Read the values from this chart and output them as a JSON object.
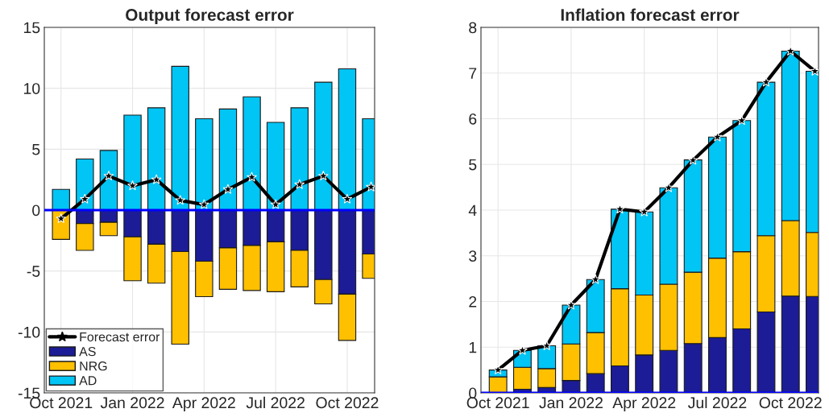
{
  "chart_data": [
    {
      "type": "bar",
      "title": "Output forecast error",
      "stacked": true,
      "categories": [
        "Oct 2021",
        null,
        null,
        "Jan 2022",
        null,
        null,
        "Apr 2022",
        null,
        null,
        "Jul 2022",
        null,
        null,
        "Oct 2022",
        null
      ],
      "series": [
        {
          "name": "Forecast error",
          "type": "line",
          "color": "#000000",
          "values": [
            -0.7,
            0.9,
            2.8,
            2.0,
            2.5,
            0.8,
            0.45,
            1.7,
            2.7,
            0.45,
            2.1,
            2.8,
            0.9,
            1.9
          ]
        },
        {
          "name": "AS",
          "color": "#1c1c96",
          "values": [
            0,
            -1.1,
            -1.0,
            -2.2,
            -2.8,
            -3.4,
            -4.2,
            -3.1,
            -2.9,
            -2.6,
            -3.3,
            -5.7,
            -6.9,
            -3.6
          ]
        },
        {
          "name": "NRG",
          "color": "#ffc000",
          "values": [
            -2.4,
            -2.2,
            -1.1,
            -3.6,
            -3.2,
            -7.6,
            -2.9,
            -3.4,
            -3.7,
            -4.1,
            -3.0,
            -2.0,
            -3.8,
            -2.0
          ]
        },
        {
          "name": "AD",
          "color": "#00c5f5",
          "values": [
            1.7,
            4.2,
            4.9,
            7.8,
            8.4,
            11.8,
            7.5,
            8.3,
            9.3,
            7.2,
            8.4,
            10.5,
            11.6,
            7.5
          ]
        }
      ],
      "ylim": [
        -15,
        15
      ],
      "yticks": [
        -15,
        -10,
        -5,
        0,
        5,
        10,
        15
      ],
      "grid": true,
      "legend": "bottom left",
      "marker": "star",
      "ref_lines": [
        {
          "axis": "y",
          "value": 0,
          "color": "#0000ff"
        }
      ]
    },
    {
      "type": "bar",
      "title": "Inflation forecast error",
      "stacked": true,
      "categories": [
        "Oct 2021",
        null,
        null,
        "Jan 2022",
        null,
        null,
        "Apr 2022",
        null,
        null,
        "Jul 2022",
        null,
        null,
        "Oct 2022",
        null
      ],
      "series": [
        {
          "type": "line",
          "color": "#000000",
          "values": [
            0.5,
            0.93,
            1.03,
            1.92,
            2.48,
            4.02,
            3.96,
            4.49,
            5.09,
            5.6,
            5.96,
            6.8,
            7.48,
            7.04
          ]
        },
        {
          "color": "#1c1c96",
          "values": [
            0,
            0.08,
            0.12,
            0.27,
            0.42,
            0.59,
            0.83,
            0.93,
            1.08,
            1.21,
            1.4,
            1.77,
            2.12,
            2.11
          ]
        },
        {
          "color": "#ffc000",
          "values": [
            0.35,
            0.48,
            0.41,
            0.8,
            0.9,
            1.69,
            1.31,
            1.45,
            1.56,
            1.74,
            1.69,
            1.67,
            1.65,
            1.4
          ]
        },
        {
          "color": "#00c5f5",
          "values": [
            0.15,
            0.37,
            0.5,
            0.85,
            1.16,
            1.74,
            1.82,
            2.11,
            2.46,
            2.65,
            2.87,
            3.36,
            3.71,
            3.53
          ]
        }
      ],
      "ylim": [
        0,
        8
      ],
      "yticks": [
        0,
        1,
        2,
        3,
        4,
        5,
        6,
        7,
        8
      ],
      "grid": true,
      "marker": "star",
      "ref_lines": [
        {
          "axis": "y",
          "value": 0,
          "color": "#0000ff"
        }
      ]
    }
  ]
}
